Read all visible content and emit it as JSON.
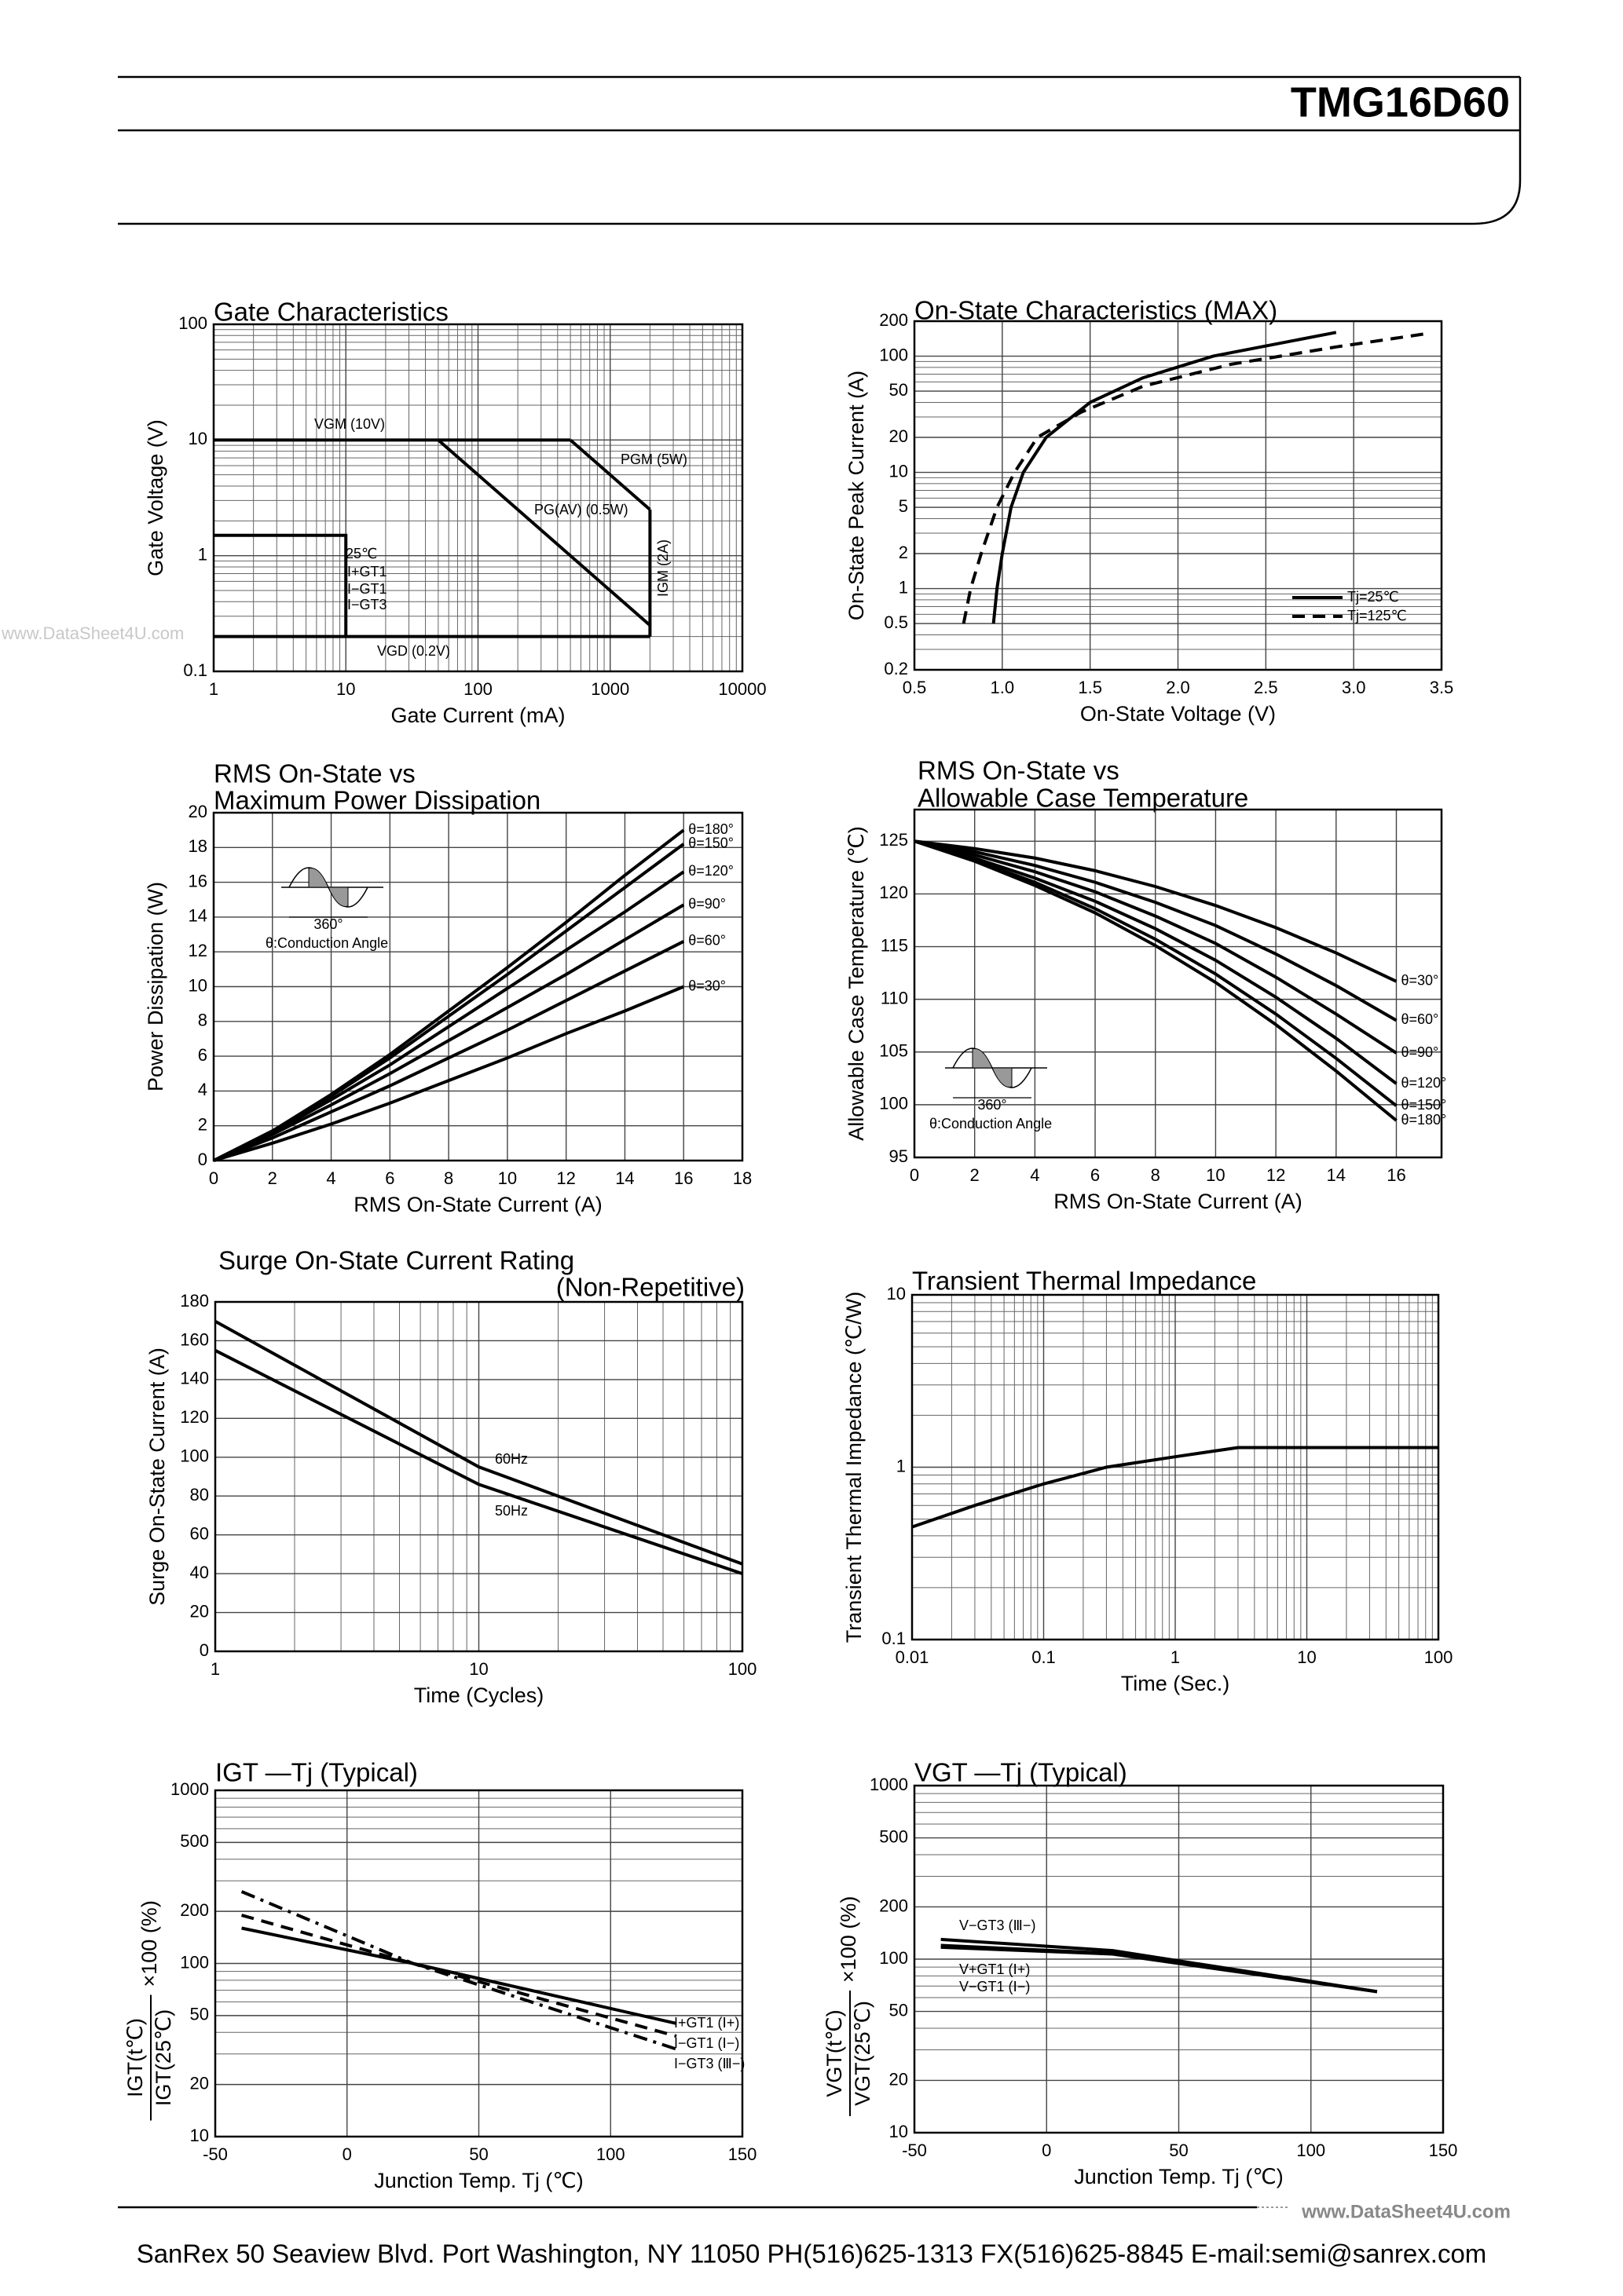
{
  "header": {
    "part": "TMG16D60"
  },
  "watermarks": [
    "www.DataSheet4U.com",
    "www.DataSheet4U.com"
  ],
  "footer": "SanRex 50 Seaview Blvd. Port Washington, NY 11050 PH(516)625-1313 FX(516)625-8845 E-mail:semi@sanrex.com",
  "chart_data": [
    {
      "type": "line",
      "title": [
        "Gate Characteristics"
      ],
      "xlabel": "Gate Current (mA)",
      "ylabel": "Gate Voltage (V)",
      "xlog": true,
      "ylog": true,
      "xlim": [
        1,
        10000
      ],
      "ylim": [
        0.1,
        100
      ],
      "xticks": [
        1,
        10,
        100,
        1000,
        10000
      ],
      "yticks": [
        0.1,
        1,
        10,
        100
      ],
      "grid": true,
      "series": [
        {
          "name": "VGM (10V)",
          "color": "#000",
          "dash": "solid",
          "x": [
            1,
            500
          ],
          "values": [
            10,
            10
          ]
        },
        {
          "name": "PGM (5W)",
          "color": "#000",
          "dash": "solid",
          "x": [
            500,
            2000
          ],
          "values": [
            10,
            2.5
          ]
        },
        {
          "name": "IGM (2A)",
          "color": "#000",
          "dash": "solid",
          "x": [
            2000,
            2000
          ],
          "values": [
            2.5,
            0.2
          ]
        },
        {
          "name": "PG(AV) (0.5W)",
          "color": "#000",
          "dash": "solid",
          "x": [
            50,
            2000
          ],
          "values": [
            10,
            0.25
          ]
        },
        {
          "name": "VGD (0.2V)",
          "color": "#000",
          "dash": "solid",
          "x": [
            1,
            2000
          ],
          "values": [
            0.2,
            0.2
          ]
        },
        {
          "name": "25℃",
          "color": "#000",
          "dash": "solid",
          "x": [
            1,
            10,
            10
          ],
          "values": [
            1.5,
            1.5,
            0.2
          ]
        }
      ],
      "annotations": [
        "I+GT1",
        "I−GT1",
        "I−GT3"
      ]
    },
    {
      "type": "line",
      "title": [
        "On-State Characteristics (MAX)"
      ],
      "xlabel": "On-State Voltage (V)",
      "ylabel": "On-State Peak Current (A)",
      "xlog": false,
      "ylog": true,
      "xlim": [
        0.5,
        3.5
      ],
      "ylim": [
        0.2,
        200
      ],
      "xticks": [
        0.5,
        {
          "value": 1,
          "label": "1.0"
        },
        1.5,
        {
          "value": 2,
          "label": "2.0"
        },
        2.5,
        {
          "value": 3,
          "label": "3.0"
        },
        3.5
      ],
      "yticks": [
        0.2,
        0.5,
        1,
        2,
        5,
        10,
        20,
        50,
        100,
        200
      ],
      "grid": true,
      "legend": "lower right",
      "series": [
        {
          "name": "Tj=25℃",
          "color": "#000",
          "dash": "solid",
          "x": [
            0.95,
            0.97,
            1.0,
            1.05,
            1.12,
            1.25,
            1.5,
            1.8,
            2.2,
            2.9
          ],
          "values": [
            0.5,
            1,
            2,
            5,
            10,
            20,
            40,
            65,
            100,
            160
          ]
        },
        {
          "name": "Tj=125℃",
          "color": "#000",
          "dash": "dashed",
          "x": [
            0.78,
            0.82,
            0.88,
            0.97,
            1.07,
            1.2,
            1.45,
            1.8,
            2.3,
            2.9,
            3.4
          ],
          "values": [
            0.5,
            1,
            2,
            5,
            10,
            20,
            33,
            55,
            85,
            120,
            155
          ]
        }
      ]
    },
    {
      "type": "line",
      "title": [
        "RMS On-State vs",
        "Maximum Power Dissipation"
      ],
      "xlabel": "RMS On-State Current (A)",
      "ylabel": "Power Dissipation (W)",
      "xlog": false,
      "ylog": false,
      "xlim": [
        0,
        18
      ],
      "ylim": [
        0,
        20
      ],
      "xticks": [
        0,
        2,
        4,
        6,
        8,
        10,
        12,
        14,
        16,
        18
      ],
      "yticks": [
        0,
        2,
        4,
        6,
        8,
        10,
        12,
        14,
        16,
        18,
        20
      ],
      "grid": true,
      "series": [
        {
          "name": "θ=180°",
          "color": "#000",
          "dash": "solid",
          "x": [
            0,
            2,
            4,
            6,
            8,
            10,
            12,
            14,
            16
          ],
          "values": [
            0,
            1.7,
            3.8,
            6.1,
            8.6,
            11.1,
            13.7,
            16.4,
            19.0
          ]
        },
        {
          "name": "θ=150°",
          "color": "#000",
          "dash": "solid",
          "x": [
            0,
            2,
            4,
            6,
            8,
            10,
            12,
            14,
            16
          ],
          "values": [
            0,
            1.7,
            3.7,
            5.9,
            8.3,
            10.7,
            13.2,
            15.7,
            18.2
          ]
        },
        {
          "name": "θ=120°",
          "color": "#000",
          "dash": "solid",
          "x": [
            0,
            2,
            4,
            6,
            8,
            10,
            12,
            14,
            16
          ],
          "values": [
            0,
            1.6,
            3.5,
            5.5,
            7.7,
            9.9,
            12.1,
            14.3,
            16.6
          ]
        },
        {
          "name": "θ=90°",
          "color": "#000",
          "dash": "solid",
          "x": [
            0,
            2,
            4,
            6,
            8,
            10,
            12,
            14,
            16
          ],
          "values": [
            0,
            1.5,
            3.2,
            5.0,
            6.9,
            8.8,
            10.7,
            12.7,
            14.7
          ]
        },
        {
          "name": "θ=60°",
          "color": "#000",
          "dash": "solid",
          "x": [
            0,
            2,
            4,
            6,
            8,
            10,
            12,
            14,
            16
          ],
          "values": [
            0,
            1.3,
            2.8,
            4.3,
            5.9,
            7.5,
            9.2,
            10.9,
            12.6
          ]
        },
        {
          "name": "θ=30°",
          "color": "#000",
          "dash": "solid",
          "x": [
            0,
            2,
            4,
            6,
            8,
            10,
            12,
            14,
            16
          ],
          "values": [
            0,
            1.0,
            2.1,
            3.3,
            4.6,
            5.9,
            7.3,
            8.6,
            10.0
          ]
        }
      ],
      "inset": [
        "360°",
        "θ:Conduction Angle"
      ]
    },
    {
      "type": "line",
      "title": [
        "RMS On-State vs",
        "Allowable Case Temperature"
      ],
      "xlabel": "RMS On-State Current (A)",
      "ylabel": "Allowable Case Temperature (℃)",
      "xlog": false,
      "ylog": false,
      "xlim": [
        0,
        17.5
      ],
      "ylim": [
        95,
        128
      ],
      "xticks": [
        0,
        2,
        4,
        6,
        8,
        10,
        12,
        14,
        16
      ],
      "yticks": [
        95,
        100,
        105,
        110,
        115,
        120,
        125
      ],
      "grid": true,
      "series": [
        {
          "name": "θ=30°",
          "color": "#000",
          "dash": "solid",
          "x": [
            0,
            2,
            4,
            6,
            8,
            10,
            12,
            14,
            16
          ],
          "values": [
            125,
            124.3,
            123.4,
            122.2,
            120.7,
            118.9,
            116.8,
            114.4,
            111.7
          ]
        },
        {
          "name": "θ=60°",
          "color": "#000",
          "dash": "solid",
          "x": [
            0,
            2,
            4,
            6,
            8,
            10,
            12,
            14,
            16
          ],
          "values": [
            125,
            124,
            122.7,
            121.1,
            119.2,
            117,
            114.3,
            111.3,
            108
          ]
        },
        {
          "name": "θ=90°",
          "color": "#000",
          "dash": "solid",
          "x": [
            0,
            2,
            4,
            6,
            8,
            10,
            12,
            14,
            16
          ],
          "values": [
            125,
            123.7,
            122.1,
            120.2,
            117.9,
            115.3,
            112.1,
            108.6,
            104.9
          ]
        },
        {
          "name": "θ=120°",
          "color": "#000",
          "dash": "solid",
          "x": [
            0,
            2,
            4,
            6,
            8,
            10,
            12,
            14,
            16
          ],
          "values": [
            125,
            123.4,
            121.5,
            119.3,
            116.7,
            113.7,
            110.2,
            106.3,
            102
          ]
        },
        {
          "name": "θ=150°",
          "color": "#000",
          "dash": "solid",
          "x": [
            0,
            2,
            4,
            6,
            8,
            10,
            12,
            14,
            16
          ],
          "values": [
            125,
            123.2,
            121.1,
            118.6,
            115.7,
            112.4,
            108.6,
            104.4,
            99.9
          ]
        },
        {
          "name": "θ=180°",
          "color": "#000",
          "dash": "solid",
          "x": [
            0,
            2,
            4,
            6,
            8,
            10,
            12,
            14,
            16
          ],
          "values": [
            125,
            123.1,
            120.8,
            118.2,
            115.1,
            111.6,
            107.6,
            103.2,
            98.5
          ]
        }
      ],
      "inset": [
        "360°",
        "θ:Conduction Angle"
      ]
    },
    {
      "type": "line",
      "title": [
        "Surge On-State Current Rating",
        "(Non-Repetitive)"
      ],
      "xlabel": "Time (Cycles)",
      "ylabel": "Surge On-State Current (A)",
      "xlog": true,
      "ylog": false,
      "xlim": [
        1,
        100
      ],
      "ylim": [
        0,
        180
      ],
      "xticks": [
        1,
        10,
        100
      ],
      "yticks": [
        0,
        20,
        40,
        60,
        80,
        100,
        120,
        140,
        160,
        180
      ],
      "grid": true,
      "series": [
        {
          "name": "60Hz",
          "color": "#000",
          "dash": "solid",
          "x": [
            1,
            10,
            100
          ],
          "values": [
            170,
            95,
            45
          ]
        },
        {
          "name": "50Hz",
          "color": "#000",
          "dash": "solid",
          "x": [
            1,
            10,
            100
          ],
          "values": [
            155,
            86,
            40
          ]
        }
      ]
    },
    {
      "type": "line",
      "title": [
        "Transient Thermal Impedance"
      ],
      "xlabel": "Time (Sec.)",
      "ylabel": "Transient Thermal Impedance (℃/W)",
      "xlog": true,
      "ylog": true,
      "xlim": [
        0.01,
        100
      ],
      "ylim": [
        0.1,
        10
      ],
      "xticks": [
        0.01,
        0.1,
        1,
        10,
        100
      ],
      "yticks": [
        0.1,
        1,
        10
      ],
      "grid": true,
      "series": [
        {
          "color": "#000",
          "dash": "solid",
          "x": [
            0.01,
            0.03,
            0.1,
            0.3,
            1,
            3,
            100
          ],
          "values": [
            0.45,
            0.6,
            0.8,
            1.0,
            1.15,
            1.3,
            1.3
          ]
        }
      ]
    },
    {
      "type": "line",
      "title": [
        "IGT —Tj (Typical)"
      ],
      "xlabel": "Junction Temp. Tj (℃)",
      "ylabel": {
        "numerator": "IGT(t℃)",
        "denominator": "IGT(25℃)",
        "suffix": "×100 (%)"
      },
      "xlog": false,
      "ylog": true,
      "xlim": [
        -50,
        150
      ],
      "ylim": [
        10,
        1000
      ],
      "xticks": [
        -50,
        0,
        50,
        100,
        150
      ],
      "yticks": [
        10,
        20,
        50,
        100,
        200,
        500,
        1000
      ],
      "grid": true,
      "series": [
        {
          "name": "I+GT1 (Ⅰ+)",
          "color": "#000",
          "dash": "solid",
          "x": [
            -40,
            25,
            125
          ],
          "values": [
            160,
            100,
            45
          ]
        },
        {
          "name": "I−GT1 (Ⅰ−)",
          "color": "#000",
          "dash": "dashed",
          "x": [
            -40,
            25,
            125
          ],
          "values": [
            190,
            100,
            38
          ]
        },
        {
          "name": "I−GT3 (Ⅲ−)",
          "color": "#000",
          "dash": "dashdot",
          "x": [
            -40,
            25,
            125
          ],
          "values": [
            260,
            100,
            32
          ]
        }
      ]
    },
    {
      "type": "line",
      "title": [
        "VGT —Tj (Typical)"
      ],
      "xlabel": "Junction Temp. Tj (℃)",
      "ylabel": {
        "numerator": "VGT(t℃)",
        "denominator": "VGT(25℃)",
        "suffix": "×100 (%)"
      },
      "xlog": false,
      "ylog": true,
      "xlim": [
        -50,
        150
      ],
      "ylim": [
        10,
        1000
      ],
      "xticks": [
        -50,
        0,
        50,
        100,
        150
      ],
      "yticks": [
        10,
        20,
        50,
        100,
        200,
        500,
        1000
      ],
      "grid": true,
      "series": [
        {
          "name": "V−GT3 (Ⅲ−)",
          "color": "#000",
          "dash": "solid",
          "x": [
            -40,
            25,
            125
          ],
          "values": [
            130,
            112,
            65
          ]
        },
        {
          "name": "V+GT1 (Ⅰ+)",
          "color": "#000",
          "dash": "solid",
          "x": [
            -40,
            25,
            125
          ],
          "values": [
            120,
            108,
            65
          ]
        },
        {
          "name": "V−GT1 (Ⅰ−)",
          "color": "#000",
          "dash": "solid",
          "x": [
            -40,
            25,
            125
          ],
          "values": [
            117,
            107,
            65
          ]
        }
      ]
    }
  ]
}
